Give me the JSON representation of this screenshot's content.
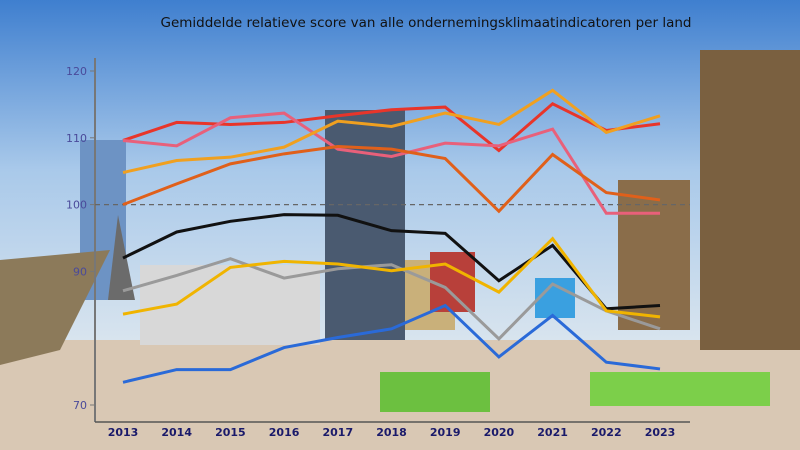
{
  "chart_data": {
    "type": "line",
    "title": "Gemiddelde relatieve score van alle ondernemingsklimaatindicatoren per land",
    "xlabel": "",
    "ylabel": "",
    "x": [
      "2013",
      "2014",
      "2015",
      "2016",
      "2017",
      "2018",
      "2019",
      "2020",
      "2021",
      "2022",
      "2023"
    ],
    "yticks": [
      "70",
      "90",
      "100",
      "110",
      "120"
    ],
    "ylim": [
      70,
      120
    ],
    "reference_line": 100,
    "grid": false,
    "legend": "none",
    "series": [
      {
        "color": "#e8352a",
        "values": [
          109.6,
          112.3,
          112.0,
          112.3,
          113.3,
          114.2,
          114.6,
          108.1,
          115.1,
          111.1,
          112.1
        ]
      },
      {
        "color": "#e8607a",
        "values": [
          109.6,
          108.8,
          113.0,
          113.7,
          108.3,
          107.2,
          109.2,
          108.8,
          111.3,
          98.7,
          98.7
        ]
      },
      {
        "color": "#f0a020",
        "values": [
          104.8,
          106.6,
          107.1,
          108.6,
          112.5,
          111.7,
          113.7,
          112.0,
          117.1,
          110.8,
          113.3
        ]
      },
      {
        "color": "#e0601a",
        "values": [
          100.0,
          103.1,
          106.1,
          107.6,
          108.7,
          108.3,
          106.9,
          99.0,
          107.5,
          101.8,
          100.7
        ]
      },
      {
        "color": "#111111",
        "values": [
          92.0,
          95.9,
          97.5,
          98.5,
          98.4,
          96.1,
          95.7,
          88.6,
          93.9,
          84.4,
          84.9
        ]
      },
      {
        "color": "#9a9a9a",
        "values": [
          87.1,
          89.4,
          91.9,
          89.0,
          90.4,
          91.0,
          87.6,
          79.9,
          88.1,
          84.1,
          81.4
        ]
      },
      {
        "color": "#f0b400",
        "values": [
          83.6,
          85.1,
          90.6,
          91.5,
          91.1,
          90.1,
          91.1,
          86.9,
          94.9,
          84.1,
          83.2
        ]
      },
      {
        "color": "#2a6ad8",
        "values": [
          73.4,
          75.3,
          75.3,
          78.6,
          80.1,
          81.4,
          84.9,
          77.2,
          83.4,
          76.4,
          75.4
        ]
      }
    ]
  }
}
